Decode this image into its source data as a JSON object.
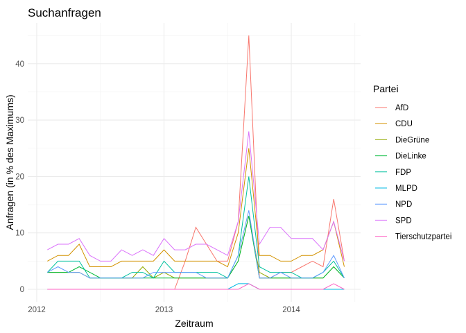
{
  "chart_data": {
    "type": "line",
    "title": "Suchanfragen",
    "xlabel": "Zeitraum",
    "ylabel": "Anfragen (in % des Maximums)",
    "legend_title": "Partei",
    "legend_position": "right",
    "grid": true,
    "x_ticks": [
      "2012",
      "2013",
      "2014"
    ],
    "y_ticks": [
      0,
      10,
      20,
      30,
      40
    ],
    "ylim": [
      -2,
      46
    ],
    "x": [
      "2012-02",
      "2012-03",
      "2012-04",
      "2012-05",
      "2012-06",
      "2012-07",
      "2012-08",
      "2012-09",
      "2012-10",
      "2012-11",
      "2012-12",
      "2013-01",
      "2013-02",
      "2013-03",
      "2013-04",
      "2013-05",
      "2013-06",
      "2013-07",
      "2013-08",
      "2013-09",
      "2013-10",
      "2013-11",
      "2013-12",
      "2014-01",
      "2014-02",
      "2014-03",
      "2014-04",
      "2014-05",
      "2014-06"
    ],
    "series": [
      {
        "name": "AfD",
        "color": "#F8766D",
        "values": [
          null,
          null,
          null,
          null,
          null,
          null,
          null,
          null,
          null,
          null,
          null,
          null,
          0,
          5,
          11,
          8,
          5,
          5,
          12,
          45,
          2,
          2,
          3,
          3,
          4,
          5,
          4,
          16,
          5
        ]
      },
      {
        "name": "CDU",
        "color": "#D39200",
        "values": [
          5,
          6,
          6,
          8,
          4,
          4,
          4,
          5,
          5,
          5,
          5,
          7,
          5,
          5,
          5,
          5,
          5,
          4,
          10,
          25,
          6,
          6,
          5,
          5,
          6,
          6,
          7,
          12,
          4
        ]
      },
      {
        "name": "DieGrüne",
        "color": "#93AA00",
        "values": [
          3,
          3,
          3,
          3,
          2,
          2,
          2,
          2,
          2,
          4,
          2,
          3,
          2,
          2,
          2,
          2,
          2,
          2,
          5,
          13,
          3,
          2,
          2,
          2,
          2,
          2,
          2,
          4,
          2
        ]
      },
      {
        "name": "DieLinke",
        "color": "#00BA38",
        "values": [
          3,
          3,
          3,
          4,
          3,
          2,
          2,
          2,
          2,
          2,
          2,
          2,
          2,
          2,
          2,
          2,
          2,
          2,
          5,
          13,
          2,
          2,
          2,
          2,
          2,
          2,
          2,
          4,
          2
        ]
      },
      {
        "name": "FDP",
        "color": "#00C19F",
        "values": [
          3,
          5,
          5,
          5,
          2,
          2,
          2,
          2,
          3,
          3,
          2,
          5,
          3,
          3,
          3,
          3,
          3,
          2,
          6,
          20,
          4,
          3,
          3,
          3,
          2,
          2,
          3,
          5,
          2
        ]
      },
      {
        "name": "MLPD",
        "color": "#00B9E3",
        "values": [
          0,
          0,
          0,
          0,
          0,
          0,
          0,
          0,
          0,
          0,
          0,
          0,
          0,
          0,
          0,
          0,
          0,
          0,
          1,
          1,
          0,
          0,
          0,
          0,
          0,
          0,
          0,
          0,
          0
        ]
      },
      {
        "name": "NPD",
        "color": "#619CFF",
        "values": [
          3,
          4,
          3,
          3,
          2,
          2,
          2,
          2,
          2,
          2,
          3,
          3,
          3,
          3,
          3,
          2,
          2,
          2,
          6,
          14,
          2,
          2,
          3,
          2,
          2,
          2,
          3,
          6,
          2
        ]
      },
      {
        "name": "SPD",
        "color": "#DB72FB",
        "values": [
          7,
          8,
          8,
          9,
          6,
          5,
          5,
          7,
          6,
          7,
          6,
          9,
          7,
          7,
          8,
          8,
          7,
          6,
          12,
          28,
          8,
          11,
          11,
          9,
          9,
          9,
          7,
          12,
          5
        ]
      },
      {
        "name": "Tierschutzpartei",
        "color": "#FF61C3",
        "values": [
          0,
          0,
          0,
          0,
          0,
          0,
          0,
          0,
          0,
          0,
          0,
          0,
          0,
          0,
          0,
          0,
          0,
          0,
          0,
          1,
          0,
          0,
          0,
          0,
          0,
          0,
          0,
          1,
          0
        ]
      }
    ]
  }
}
